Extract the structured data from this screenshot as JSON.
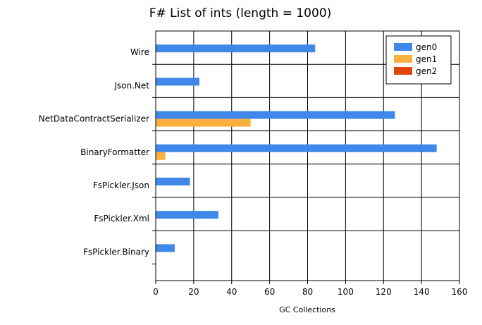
{
  "chart_data": {
    "type": "bar",
    "orientation": "horizontal",
    "title": "F# List of ints (length = 1000)",
    "xlabel": "GC Collections",
    "ylabel": "",
    "xlim": [
      0,
      160
    ],
    "x_ticks": [
      0,
      20,
      40,
      60,
      80,
      100,
      120,
      140,
      160
    ],
    "grid": true,
    "legend_position": "top-right",
    "categories": [
      "Wire",
      "Json.Net",
      "NetDataContractSerializer",
      "BinaryFormatter",
      "FsPickler.Json",
      "FsPickler.Xml",
      "FsPickler.Binary"
    ],
    "series": [
      {
        "name": "gen0",
        "color": "#3f87e8",
        "values": [
          84,
          23,
          126,
          148,
          18,
          33,
          10
        ]
      },
      {
        "name": "gen1",
        "color": "#f9b03f",
        "values": [
          0,
          0,
          50,
          5,
          0,
          0,
          0
        ]
      },
      {
        "name": "gen2",
        "color": "#e2440f",
        "values": [
          0,
          0,
          0,
          0,
          0,
          0,
          0
        ]
      }
    ]
  }
}
